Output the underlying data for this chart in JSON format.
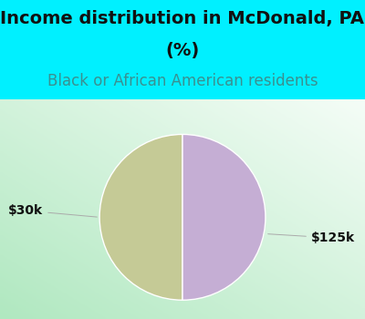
{
  "title_line1": "Income distribution in McDonald, PA",
  "title_line2": "(%)",
  "subtitle": "Black or African American residents",
  "slices": [
    0.5,
    0.5
  ],
  "labels": [
    "$30k",
    "$125k"
  ],
  "slice_colors": [
    "#c5ca96",
    "#c5aed4"
  ],
  "cyan_bg": "#00f0ff",
  "chart_bg_colors": [
    "#b0e8c0",
    "#e8f8ee",
    "#ffffff"
  ],
  "title_color": "#111111",
  "subtitle_color": "#3a9090",
  "label_color": "#111111",
  "label_fontsize": 10,
  "title_fontsize": 14,
  "subtitle_fontsize": 12,
  "start_angle": 90
}
